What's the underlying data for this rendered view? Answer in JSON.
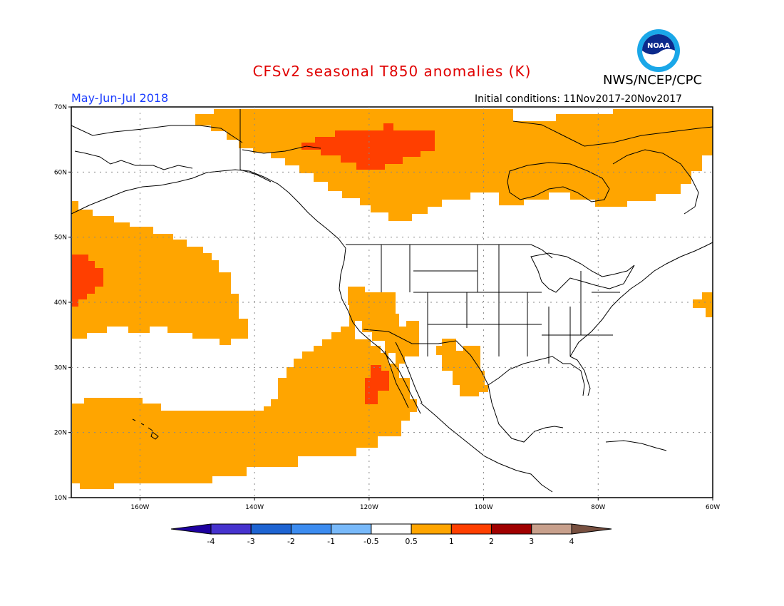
{
  "title": "CFSv2 seasonal T850 anomalies (K)",
  "agency": "NWS/NCEP/CPC",
  "logo_text": "NOAA",
  "season": "May-Jun-Jul 2018",
  "initial_conditions": "Initial conditions: 11Nov2017-20Nov2017",
  "map": {
    "lon_range": [
      -172,
      -60
    ],
    "lat_range": [
      10,
      70
    ],
    "lat_ticks": [
      {
        "value": 70,
        "label": "70N"
      },
      {
        "value": 60,
        "label": "60N"
      },
      {
        "value": 50,
        "label": "50N"
      },
      {
        "value": 40,
        "label": "40N"
      },
      {
        "value": 30,
        "label": "30N"
      },
      {
        "value": 20,
        "label": "20N"
      },
      {
        "value": 10,
        "label": "10N"
      }
    ],
    "lon_ticks": [
      {
        "value": -160,
        "label": "160W"
      },
      {
        "value": -140,
        "label": "140W"
      },
      {
        "value": -120,
        "label": "120W"
      },
      {
        "value": -100,
        "label": "100W"
      },
      {
        "value": -80,
        "label": "80W"
      },
      {
        "value": -60,
        "label": "60W"
      }
    ],
    "anomaly_regions": [
      {
        "name": "canada-north-warm",
        "category": "0.5 to 1",
        "color": "#ffa500"
      },
      {
        "name": "yukon-nwt-warm-core",
        "category": "1 to 2",
        "color": "#ff3f00"
      },
      {
        "name": "hudson-labrador-warm",
        "category": "0.5 to 1",
        "color": "#ffa500"
      },
      {
        "name": "north-pacific-warm",
        "category": "0.5 to 1",
        "color": "#ffa500"
      },
      {
        "name": "north-pacific-warm-core",
        "category": "1 to 2",
        "color": "#ff3f00"
      },
      {
        "name": "subtropical-pacific-warm",
        "category": "0.5 to 1",
        "color": "#ffa500"
      },
      {
        "name": "southwest-us-warm",
        "category": "0.5 to 1",
        "color": "#ffa500"
      },
      {
        "name": "baja-warm-core",
        "category": "1 to 2",
        "color": "#ff3f00"
      },
      {
        "name": "mexico-plateau-warm",
        "category": "0.5 to 1",
        "color": "#ffa500"
      },
      {
        "name": "atlantic-coast-warm",
        "category": "0.5 to 1",
        "color": "#ffa500"
      }
    ]
  },
  "colorbar": {
    "labels": [
      "-4",
      "-3",
      "-2",
      "-1",
      "-0.5",
      "0.5",
      "1",
      "2",
      "3",
      "4"
    ],
    "colors": [
      "#1e00a0",
      "#4633ce",
      "#1e64d2",
      "#3c8cf0",
      "#78b9fa",
      "#ffffff",
      "#ffa500",
      "#ff3f00",
      "#a00000",
      "#c8a08c",
      "#785040"
    ]
  }
}
